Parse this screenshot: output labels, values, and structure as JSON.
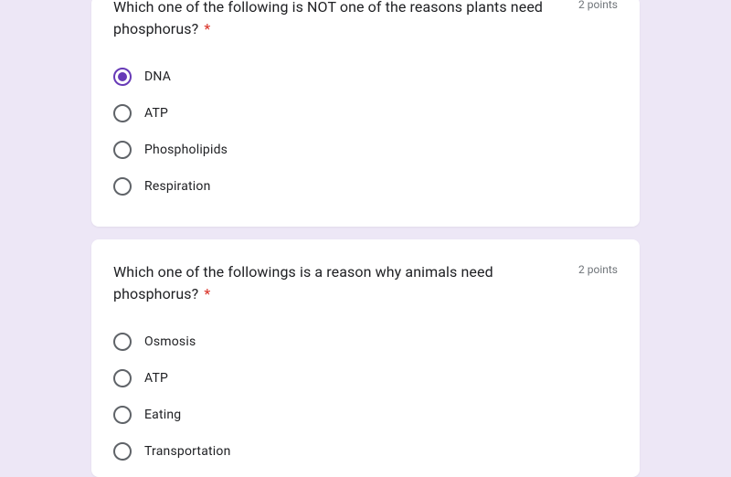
{
  "colors": {
    "page_bg": "#ede7f6",
    "card_bg": "#ffffff",
    "text": "#202124",
    "muted": "#70757a",
    "required": "#d93025",
    "radio_border": "#5f6368",
    "radio_selected": "#673ab7"
  },
  "questions": [
    {
      "title": "Which one of the following is NOT one of the reasons plants need phosphorus?",
      "required_mark": "*",
      "points": "2 points",
      "selected_index": 0,
      "options": [
        "DNA",
        "ATP",
        "Phospholipids",
        "Respiration"
      ]
    },
    {
      "title": "Which one of the followings is a reason why animals need phosphorus?",
      "required_mark": "*",
      "points": "2 points",
      "selected_index": -1,
      "options": [
        "Osmosis",
        "ATP",
        "Eating",
        "Transportation"
      ]
    }
  ]
}
